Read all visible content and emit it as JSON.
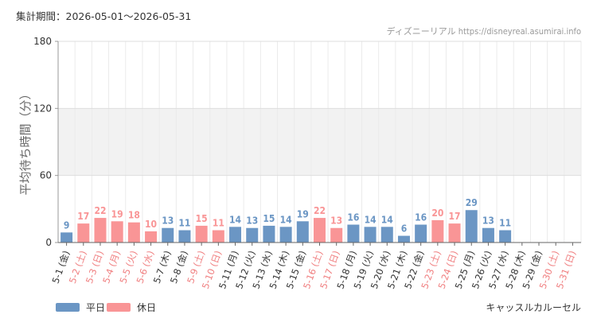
{
  "header": {
    "period": "集計期間：2026-05-01～2026-05-31",
    "site": "ディズニーリアル https://disneyreal.asumirai.info"
  },
  "legend": {
    "weekday_label": "平日",
    "holiday_label": "休日"
  },
  "attraction": "キャッスルカルーセル",
  "colors": {
    "weekday": "#6b96c4",
    "holiday": "#f99596",
    "band": "#f2f2f2",
    "grid": "#dddddd"
  },
  "chart_data": {
    "type": "bar",
    "ylabel": "平均待ち時間（分）",
    "ylim": [
      0,
      180
    ],
    "yticks": [
      0,
      60,
      120,
      180
    ],
    "grid": true,
    "legend_position": "bottom-left",
    "categories": [
      "5-1 (金)",
      "5-2 (土)",
      "5-3 (日)",
      "5-4 (月)",
      "5-5 (火)",
      "5-6 (水)",
      "5-7 (木)",
      "5-8 (金)",
      "5-9 (土)",
      "5-10 (日)",
      "5-11 (月)",
      "5-12 (火)",
      "5-13 (水)",
      "5-14 (木)",
      "5-15 (金)",
      "5-16 (土)",
      "5-17 (日)",
      "5-18 (月)",
      "5-19 (火)",
      "5-20 (水)",
      "5-21 (木)",
      "5-22 (金)",
      "5-23 (土)",
      "5-24 (日)",
      "5-25 (月)",
      "5-26 (火)",
      "5-27 (水)",
      "5-28 (木)",
      "5-29 (金)",
      "5-30 (土)",
      "5-31 (日)"
    ],
    "day_type": [
      "weekday",
      "holiday",
      "holiday",
      "holiday",
      "holiday",
      "holiday",
      "weekday",
      "weekday",
      "holiday",
      "holiday",
      "weekday",
      "weekday",
      "weekday",
      "weekday",
      "weekday",
      "holiday",
      "holiday",
      "weekday",
      "weekday",
      "weekday",
      "weekday",
      "weekday",
      "holiday",
      "holiday",
      "weekday",
      "weekday",
      "weekday",
      "weekday",
      "weekday",
      "holiday",
      "holiday"
    ],
    "values": [
      9,
      17,
      22,
      19,
      18,
      10,
      13,
      11,
      15,
      11,
      14,
      13,
      15,
      14,
      19,
      22,
      13,
      16,
      14,
      14,
      6,
      16,
      20,
      17,
      29,
      13,
      11,
      null,
      null,
      null,
      null
    ]
  }
}
